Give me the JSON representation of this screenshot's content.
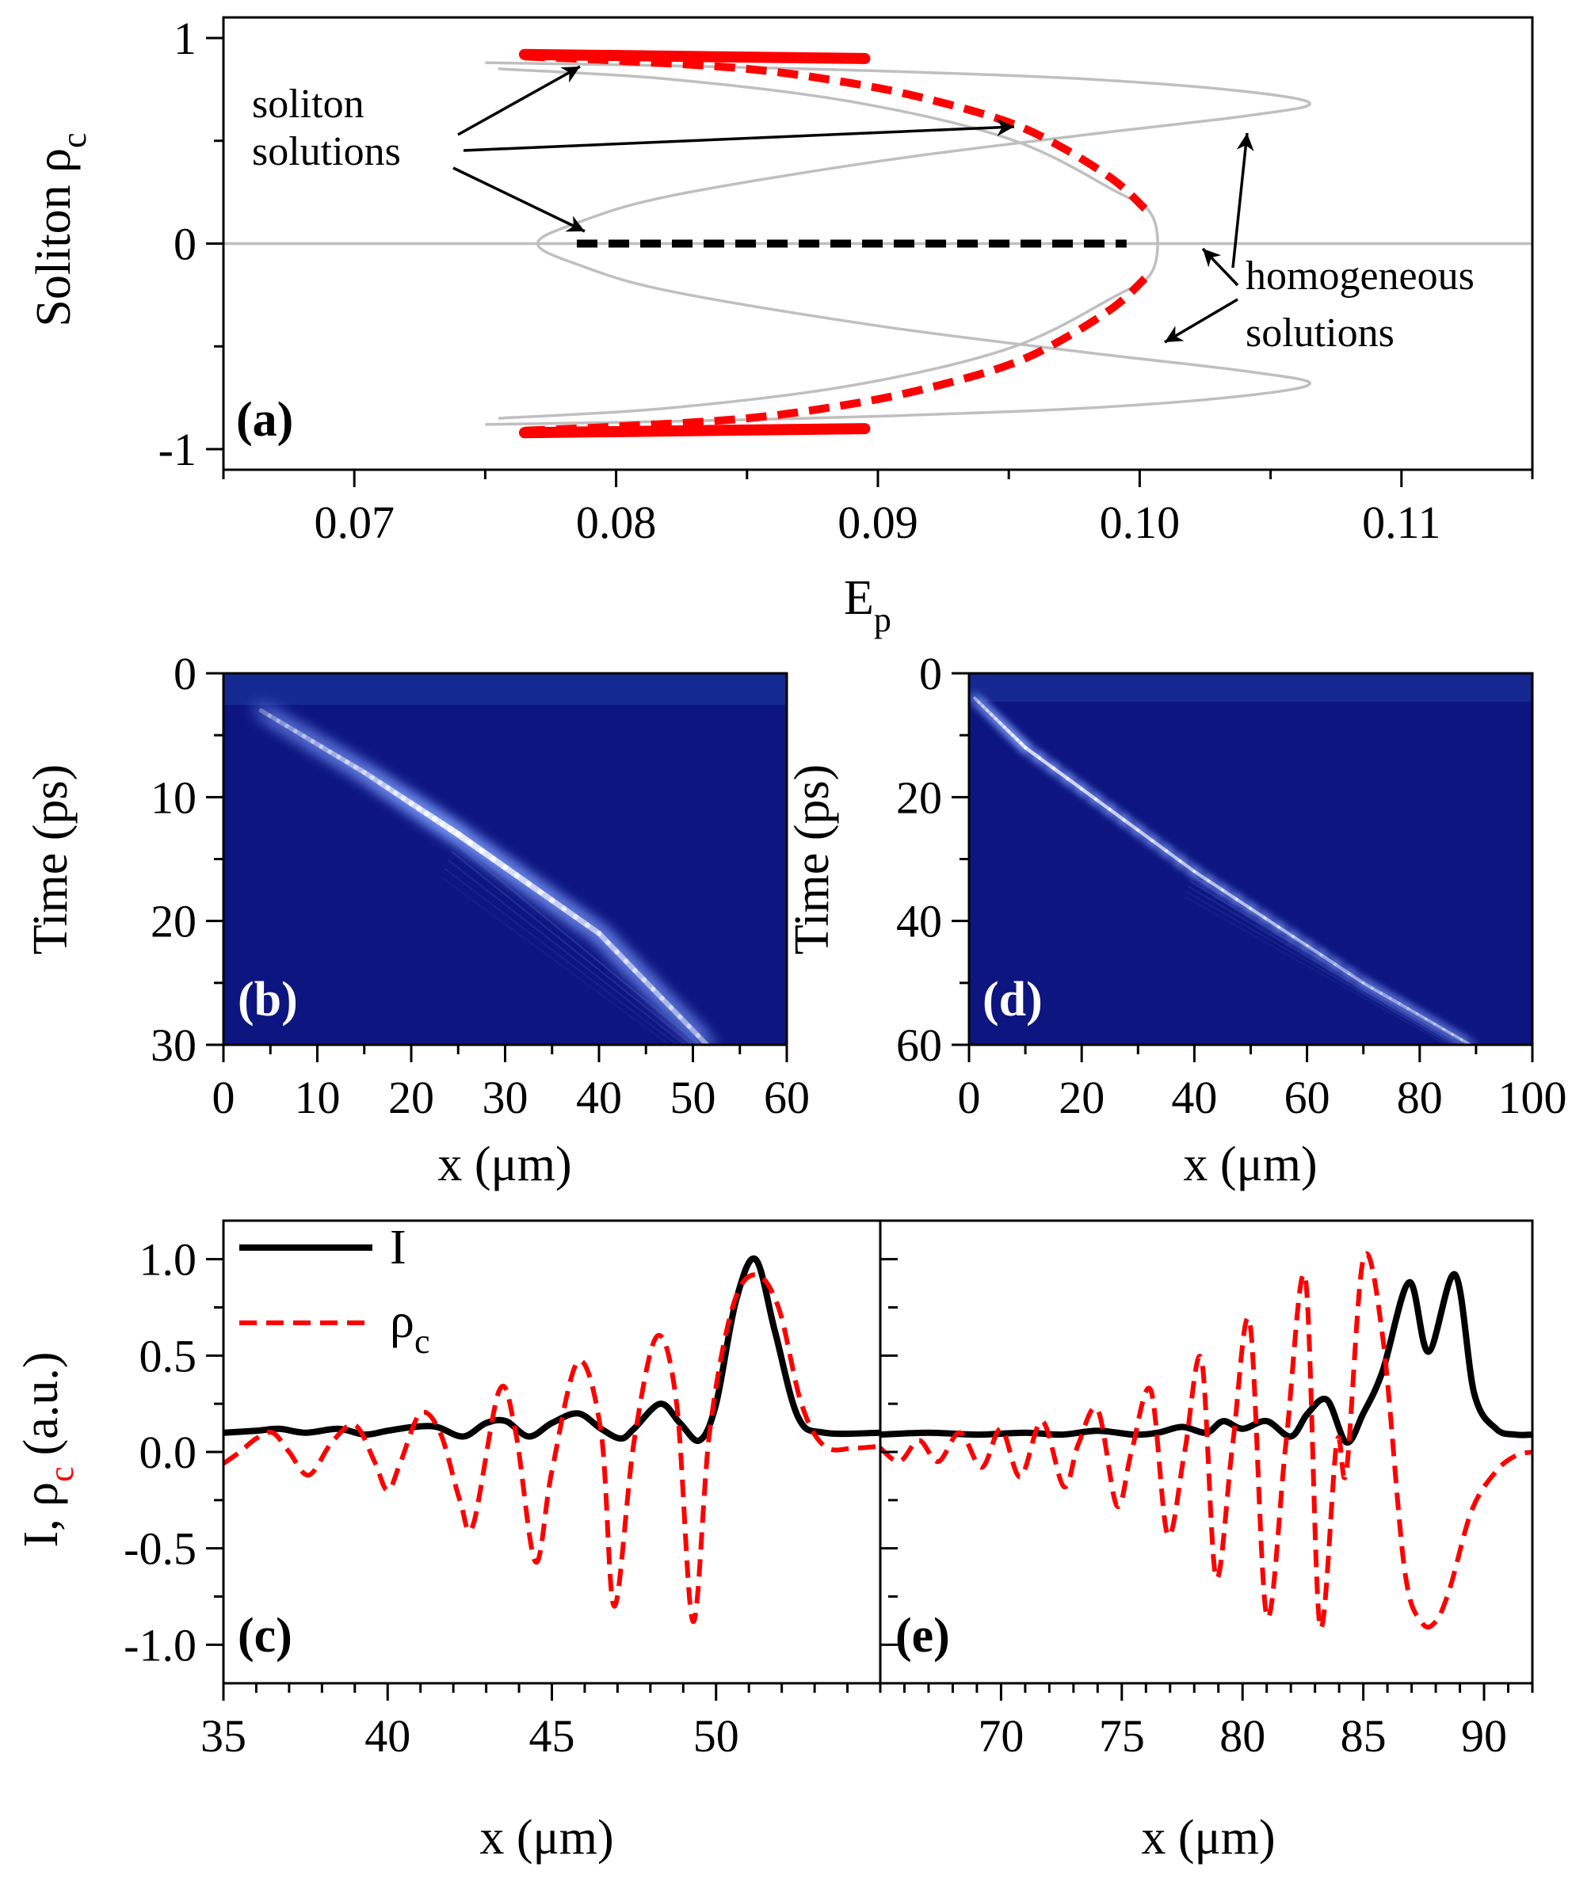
{
  "chart_data": [
    {
      "id": "a",
      "type": "line",
      "panel_label": "(a)",
      "xlabel": "E",
      "xlabel_sub": "p",
      "ylabel": "Soliton ρ",
      "ylabel_sub": "c",
      "xlim": [
        0.065,
        0.115
      ],
      "ylim": [
        -1.1,
        1.1
      ],
      "x_ticks": [
        0.07,
        0.08,
        0.09,
        0.1,
        0.11
      ],
      "x_tick_labels": [
        "0.07",
        "0.08",
        "0.09",
        "0.10",
        "0.11"
      ],
      "y_ticks": [
        -1,
        0,
        1
      ],
      "y_tick_labels": [
        "-1",
        "0",
        "1"
      ],
      "grid": false,
      "colors": {
        "homogeneous": "#bfbfbf",
        "soliton": "#ff0000",
        "zero_soliton": "#000000"
      },
      "annotations": [
        {
          "text": [
            "soliton",
            "solutions"
          ]
        },
        {
          "text": [
            "homogeneous",
            "solutions"
          ]
        }
      ],
      "series": [
        {
          "style": "solid-thin-gray",
          "x": [
            0.075,
            0.082,
            0.09,
            0.098,
            0.104,
            0.1065,
            0.104,
            0.098,
            0.09,
            0.082,
            0.0785,
            0.077,
            0.0785,
            0.082,
            0.09,
            0.098,
            0.104,
            0.1065,
            0.104,
            0.098,
            0.09,
            0.082,
            0.075
          ],
          "y": [
            0.88,
            0.865,
            0.84,
            0.8,
            0.74,
            0.68,
            0.62,
            0.53,
            0.4,
            0.23,
            0.1,
            0.0,
            -0.1,
            -0.23,
            -0.4,
            -0.53,
            -0.62,
            -0.68,
            -0.74,
            -0.8,
            -0.84,
            -0.865,
            -0.88
          ]
        },
        {
          "style": "solid-thin-gray",
          "x": [
            0.0755,
            0.082,
            0.089,
            0.095,
            0.099,
            0.1005,
            0.1005,
            0.099,
            0.095,
            0.089,
            0.082,
            0.0755
          ],
          "y": [
            0.85,
            0.8,
            0.69,
            0.51,
            0.26,
            0.13,
            -0.13,
            -0.26,
            -0.51,
            -0.69,
            -0.8,
            -0.85
          ]
        },
        {
          "style": "solid-thin-gray",
          "x": [
            0.065,
            0.115
          ],
          "y": [
            0.0,
            0.0
          ]
        },
        {
          "style": "solid-thick-red",
          "x": [
            0.0765,
            0.0895
          ],
          "y": [
            0.92,
            0.9
          ]
        },
        {
          "style": "solid-thick-red",
          "x": [
            0.0765,
            0.0895
          ],
          "y": [
            -0.92,
            -0.9
          ]
        },
        {
          "style": "dashed-red",
          "x": [
            0.0765,
            0.08,
            0.085,
            0.089,
            0.092,
            0.095,
            0.097,
            0.099,
            0.1002
          ],
          "y": [
            0.91,
            0.89,
            0.85,
            0.78,
            0.7,
            0.59,
            0.47,
            0.31,
            0.17
          ]
        },
        {
          "style": "dashed-red",
          "x": [
            0.0765,
            0.08,
            0.085,
            0.089,
            0.092,
            0.095,
            0.097,
            0.099,
            0.1002
          ],
          "y": [
            -0.91,
            -0.89,
            -0.85,
            -0.78,
            -0.7,
            -0.59,
            -0.47,
            -0.31,
            -0.17
          ]
        },
        {
          "style": "dashed-black",
          "x": [
            0.0785,
            0.0995
          ],
          "y": [
            0.0,
            0.0
          ]
        }
      ]
    },
    {
      "id": "b",
      "type": "heatmap",
      "panel_label": "(b)",
      "xlabel": "x (μm)",
      "ylabel": "Time (ps)",
      "xlim": [
        0,
        60
      ],
      "ylim": [
        30,
        0
      ],
      "x_ticks": [
        0,
        10,
        20,
        30,
        40,
        50,
        60
      ],
      "x_tick_labels": [
        "0",
        "10",
        "20",
        "30",
        "40",
        "50",
        "60"
      ],
      "y_ticks": [
        0,
        10,
        20,
        30
      ],
      "y_tick_labels": [
        "0",
        "10",
        "20",
        "30"
      ],
      "colors": {
        "background": "#0c1580",
        "peak": "#ffffff"
      },
      "trajectory": {
        "x": [
          4,
          15,
          25,
          40,
          51.5
        ],
        "t": [
          3,
          8,
          13,
          21,
          30
        ],
        "peak_intensity": [
          0.35,
          0.6,
          1.0,
          0.7,
          0.55
        ]
      }
    },
    {
      "id": "c",
      "type": "line",
      "panel_label": "(c)",
      "xlabel": "x (μm)",
      "ylabel": "I, ρ",
      "ylabel_sub": "c",
      "ylabel_suffix": "(a.u.)",
      "xlim": [
        35,
        55
      ],
      "ylim": [
        -1.2,
        1.2
      ],
      "x_ticks": [
        35,
        40,
        45,
        50
      ],
      "x_tick_labels": [
        "35",
        "40",
        "45",
        "50"
      ],
      "y_ticks": [
        -1.0,
        -0.5,
        0.0,
        0.5,
        1.0
      ],
      "y_tick_labels": [
        "-1.0",
        "-0.5",
        "0.0",
        "0.5",
        "1.0"
      ],
      "legend": {
        "placement": "top-left",
        "entries": [
          {
            "label": "I",
            "style": "solid-black"
          },
          {
            "label": "ρ",
            "sub": "c",
            "style": "dashed-red"
          }
        ]
      },
      "series": [
        {
          "name": "I",
          "color": "#000000",
          "x": [
            35,
            36,
            36.7,
            37.5,
            38.5,
            39.3,
            40,
            40.8,
            41.5,
            42.3,
            43,
            43.6,
            44.3,
            45,
            45.8,
            46.5,
            47.1,
            47.5,
            48.3,
            48.9,
            49.5,
            50,
            50.6,
            51.2,
            51.8,
            52.5,
            53.3,
            55
          ],
          "y": [
            0.1,
            0.11,
            0.12,
            0.1,
            0.12,
            0.09,
            0.11,
            0.13,
            0.13,
            0.08,
            0.15,
            0.16,
            0.08,
            0.15,
            0.2,
            0.12,
            0.07,
            0.12,
            0.25,
            0.15,
            0.06,
            0.25,
            0.78,
            1.0,
            0.62,
            0.18,
            0.1,
            0.1
          ]
        },
        {
          "name": "ρ",
          "color": "#ff0000",
          "x": [
            35,
            35.5,
            36,
            36.5,
            37,
            37.6,
            38.3,
            39,
            39.6,
            40,
            40.4,
            41.0,
            41.6,
            42.2,
            42.6,
            43.4,
            43.9,
            44.5,
            45,
            45.8,
            46.5,
            46.9,
            47.5,
            48.2,
            48.8,
            49.3,
            49.8,
            50.5,
            51.2,
            51.9,
            52.6,
            53.3,
            54.2,
            55
          ],
          "y": [
            -0.06,
            0.0,
            0.07,
            0.1,
            0.0,
            -0.12,
            0.05,
            0.14,
            -0.05,
            -0.2,
            -0.05,
            0.2,
            0.1,
            -0.25,
            -0.38,
            0.32,
            0.1,
            -0.57,
            -0.1,
            0.47,
            0.1,
            -0.8,
            0.05,
            0.6,
            0.25,
            -0.88,
            0.1,
            0.75,
            0.92,
            0.75,
            0.25,
            0.03,
            0.02,
            0.03
          ]
        }
      ]
    },
    {
      "id": "d",
      "type": "heatmap",
      "panel_label": "(d)",
      "xlabel": "x (μm)",
      "ylabel": "Time (ps)",
      "xlim": [
        0,
        100
      ],
      "ylim": [
        60,
        0
      ],
      "x_ticks": [
        0,
        20,
        40,
        60,
        80,
        100
      ],
      "x_tick_labels": [
        "0",
        "20",
        "40",
        "60",
        "80",
        "100"
      ],
      "y_ticks": [
        0,
        20,
        40,
        60
      ],
      "y_tick_labels": [
        "0",
        "20",
        "40",
        "60"
      ],
      "colors": {
        "background": "#0c1580",
        "peak": "#ffffff"
      },
      "trajectory": {
        "x": [
          1,
          10,
          40,
          70,
          89
        ],
        "t": [
          4,
          12,
          32,
          50,
          60
        ],
        "peak_intensity": [
          0.55,
          0.9,
          0.75,
          0.65,
          0.55
        ]
      }
    },
    {
      "id": "e",
      "type": "line",
      "panel_label": "(e)",
      "xlabel": "x (μm)",
      "xlim": [
        65,
        92
      ],
      "ylim": [
        -1.2,
        1.2
      ],
      "x_ticks": [
        70,
        75,
        80,
        85,
        90
      ],
      "x_tick_labels": [
        "70",
        "75",
        "80",
        "85",
        "90"
      ],
      "series": [
        {
          "name": "I",
          "color": "#000000",
          "x": [
            65,
            67,
            69,
            71,
            72.5,
            74,
            75.5,
            76.5,
            77.5,
            78.5,
            79.2,
            80,
            81,
            82,
            82.7,
            83.5,
            84.3,
            85,
            85.8,
            86.9,
            87.7,
            88.8,
            89.6,
            90.5,
            91.3,
            92
          ],
          "y": [
            0.09,
            0.1,
            0.09,
            0.1,
            0.09,
            0.11,
            0.09,
            0.1,
            0.13,
            0.1,
            0.16,
            0.12,
            0.16,
            0.08,
            0.2,
            0.27,
            0.05,
            0.2,
            0.42,
            0.88,
            0.52,
            0.92,
            0.3,
            0.12,
            0.09,
            0.09
          ]
        },
        {
          "name": "ρ",
          "color": "#ff0000",
          "x": [
            65,
            65.8,
            66.6,
            67.4,
            68.3,
            69.2,
            70,
            70.8,
            71.7,
            72.6,
            73.2,
            74,
            74.8,
            75.4,
            76.2,
            76.9,
            77.6,
            78.3,
            78.9,
            79.6,
            80.3,
            81,
            81.8,
            82.6,
            83.2,
            83.9,
            84.3,
            85,
            85.8,
            86.7,
            87.4,
            88,
            88.6,
            89.5,
            90.5,
            91.3,
            92
          ],
          "y": [
            0.02,
            -0.05,
            0.06,
            -0.05,
            0.1,
            -0.08,
            0.12,
            -0.13,
            0.16,
            -0.18,
            0.04,
            0.22,
            -0.28,
            0.0,
            0.32,
            -0.43,
            0.0,
            0.48,
            -0.65,
            0.05,
            0.67,
            -0.85,
            0.05,
            0.9,
            -0.9,
            0.05,
            -0.1,
            1.0,
            0.6,
            -0.6,
            -0.88,
            -0.88,
            -0.7,
            -0.3,
            -0.1,
            -0.02,
            0.0
          ]
        }
      ]
    }
  ]
}
